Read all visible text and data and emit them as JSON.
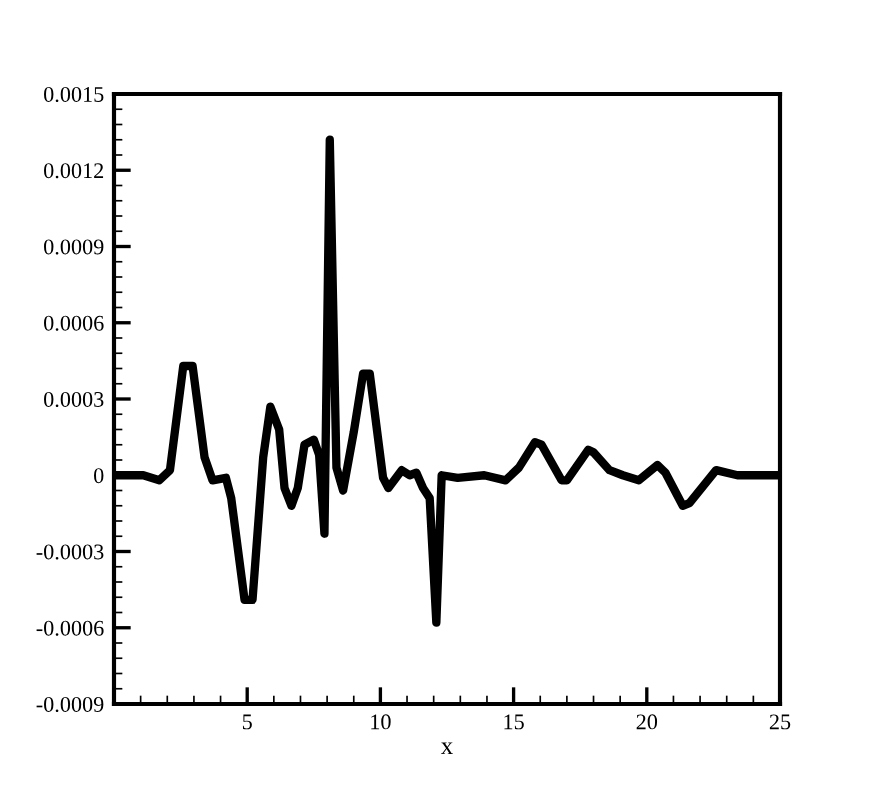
{
  "chart_data": {
    "type": "line",
    "xlabel": "x",
    "x": [
      0.1,
      1.1,
      1.7,
      2.1,
      2.6,
      2.95,
      3.4,
      3.7,
      4.2,
      4.4,
      4.9,
      5.2,
      5.6,
      5.87,
      6.2,
      6.4,
      6.66,
      6.9,
      7.15,
      7.5,
      7.7,
      7.9,
      8.1,
      8.35,
      8.6,
      9.0,
      9.35,
      9.6,
      10.1,
      10.3,
      10.8,
      11.1,
      11.35,
      11.6,
      11.85,
      12.1,
      12.3,
      12.9,
      13.9,
      14.7,
      15.2,
      15.8,
      16.05,
      16.8,
      17.0,
      17.8,
      18.0,
      18.6,
      19.1,
      19.7,
      20.4,
      20.7,
      21.35,
      21.6,
      22.6,
      23.4,
      24.9
    ],
    "series": [
      {
        "color": "#000000",
        "values": [
          0,
          0,
          -2e-05,
          2e-05,
          0.00043,
          0.00043,
          7e-05,
          -2e-05,
          -1e-05,
          -9e-05,
          -0.00049,
          -0.00049,
          7e-05,
          0.00027,
          0.00018,
          -5e-05,
          -0.00012,
          -5e-05,
          0.00012,
          0.00014,
          8e-05,
          -0.00023,
          0.00132,
          3e-05,
          -6e-05,
          0.00017,
          0.0004,
          0.0004,
          -1e-05,
          -5e-05,
          2e-05,
          0,
          1e-05,
          -5e-05,
          -9e-05,
          -0.00058,
          0,
          -1e-05,
          0,
          -2e-05,
          3e-05,
          0.00013,
          0.00012,
          -2e-05,
          -2e-05,
          0.0001,
          9e-05,
          2e-05,
          0,
          -2e-05,
          4e-05,
          1e-05,
          -0.00012,
          -0.00011,
          2e-05,
          0,
          0
        ]
      }
    ],
    "xlim": [
      0,
      25
    ],
    "xticks": [
      5,
      10,
      15,
      20,
      25
    ],
    "ylim": [
      -0.0009,
      0.0015
    ],
    "yticks": [
      {
        "value": -0.0009,
        "label": "-0.0009"
      },
      {
        "value": -0.0006,
        "label": "-0.0006"
      },
      {
        "value": -0.0003,
        "label": "-0.0003"
      },
      0,
      {
        "value": 0.0003,
        "label": "0.0003"
      },
      {
        "value": 0.0006,
        "label": "0.0006"
      },
      {
        "value": 0.0009,
        "label": "0.0009"
      },
      {
        "value": 0.0012,
        "label": "0.0012"
      },
      {
        "value": 0.0015,
        "label": "0.0015"
      }
    ],
    "line_style": "solid",
    "marker": "none",
    "grid": false,
    "legend": false
  }
}
